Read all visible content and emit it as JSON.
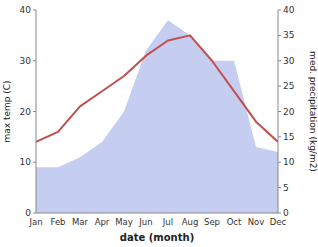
{
  "chart_data": {
    "type": "line",
    "categories": [
      "Jan",
      "Feb",
      "Mar",
      "Apr",
      "May",
      "Jun",
      "Jul",
      "Aug",
      "Sep",
      "Oct",
      "Nov",
      "Dec"
    ],
    "xlabel": "date (month)",
    "ylabel": "max temp (C)",
    "y2label": "med. precipitation (kg/m2)",
    "series": [
      {
        "type": "area",
        "axis": "y2",
        "color": "#c5cdf0",
        "values": [
          9,
          9,
          11,
          14,
          20,
          32,
          38,
          35,
          30,
          30,
          13,
          12
        ]
      },
      {
        "type": "line",
        "color": "#c0504d",
        "values": [
          14,
          16,
          21,
          24,
          27,
          31,
          34,
          35,
          30,
          24,
          18,
          14
        ]
      }
    ],
    "ylim": [
      0,
      40
    ],
    "yticks": [
      0,
      10,
      20,
      30,
      40
    ],
    "y2lim": [
      0,
      40
    ],
    "y2ticks": [
      0,
      5,
      10,
      15,
      20,
      25,
      30,
      35,
      40
    ]
  }
}
